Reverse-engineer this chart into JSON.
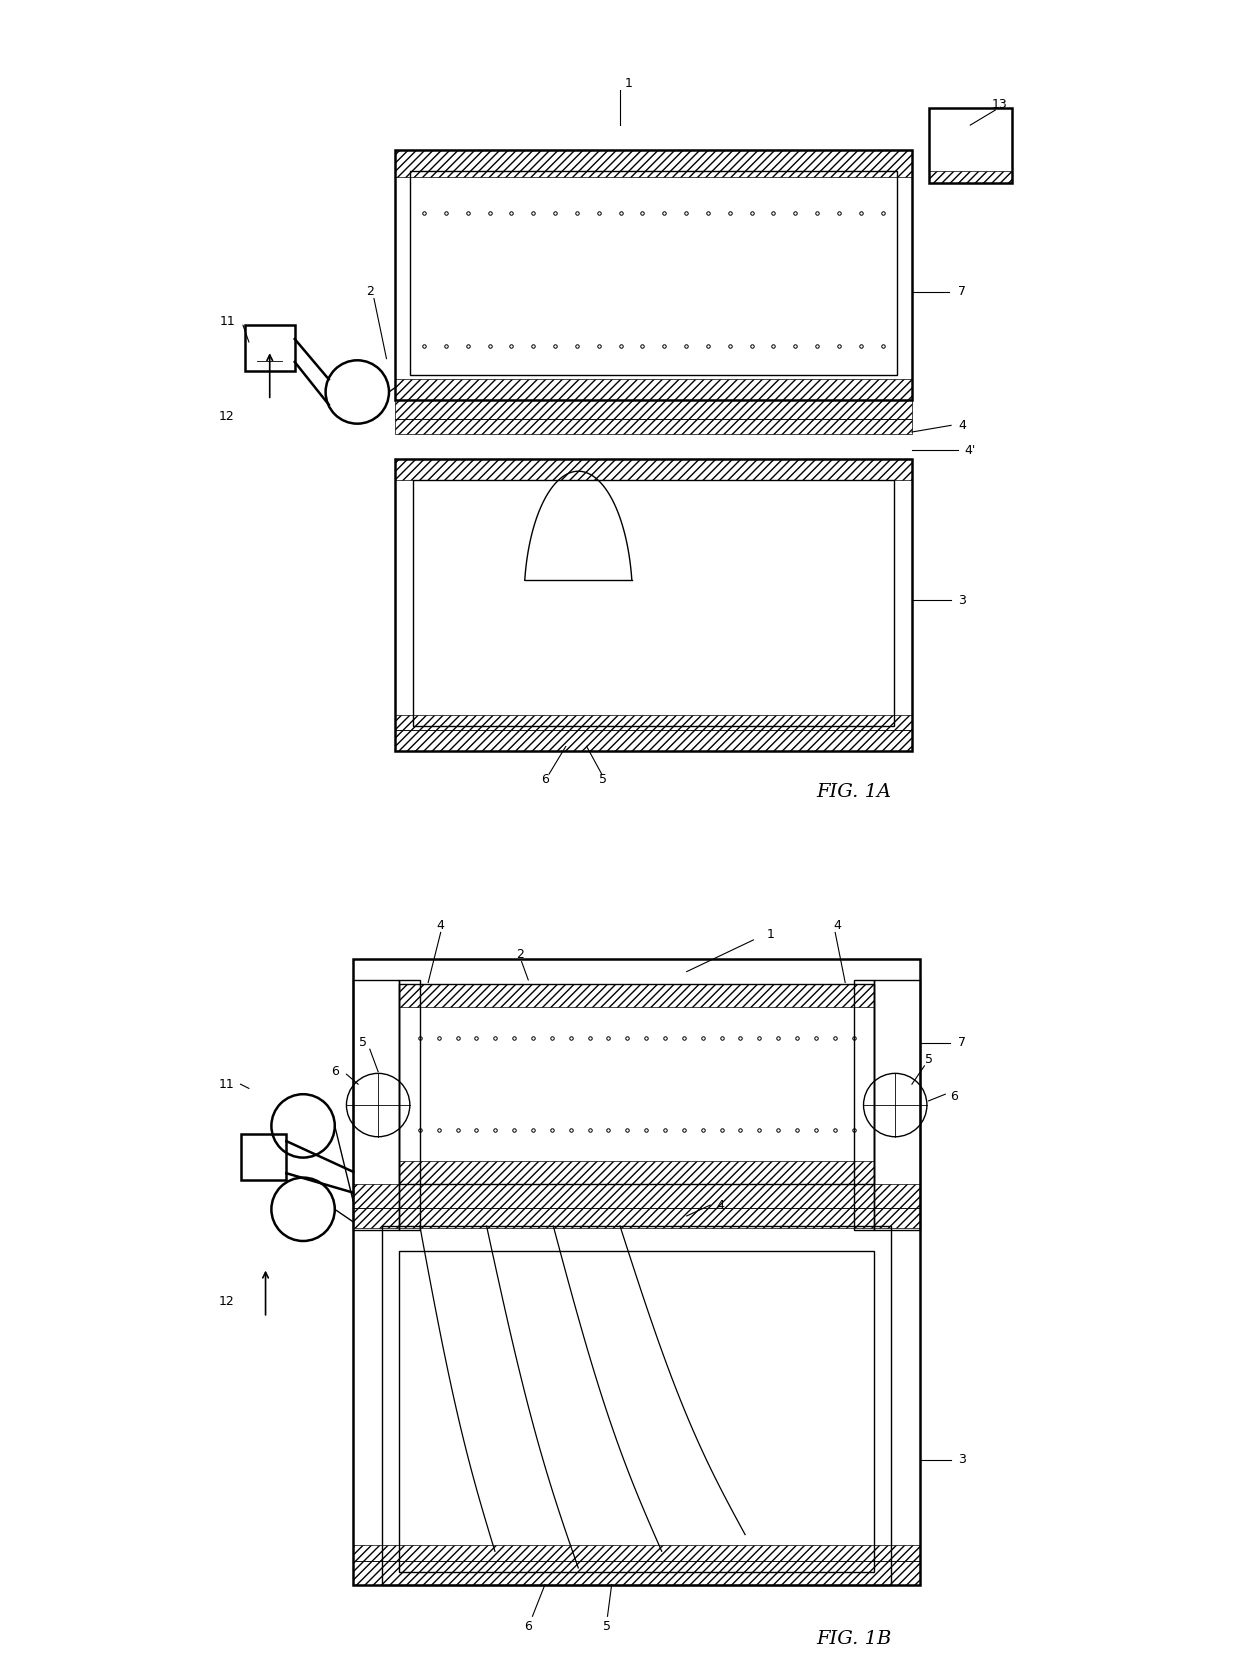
{
  "bg_color": "#ffffff",
  "fig_width": 12.4,
  "fig_height": 16.68,
  "lw_outer": 1.8,
  "lw_inner": 1.0,
  "lw_line": 0.8
}
